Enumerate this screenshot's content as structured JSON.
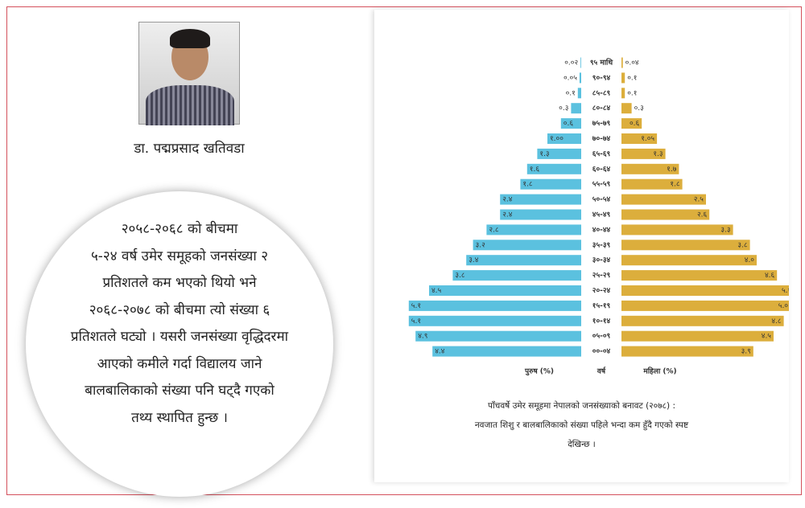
{
  "author": {
    "name": "डा. पद्मप्रसाद खतिवडा"
  },
  "quote": {
    "lines": [
      "२०५८-२०६८ को बीचमा",
      "५-२४ वर्ष उमेर समूहको जनसंख्या २",
      "प्रतिशतले कम भएको थियो भने",
      "२०६८-२०७८ को बीचमा त्यो संख्या ६",
      "प्रतिशतले घट्यो । यसरी जनसंख्या वृद्धिदरमा",
      "आएको कमीले गर्दा विद्यालय जाने",
      "बालबालिकाको संख्या पनि घट्दै गएको",
      "तथ्य स्थापित हुन्छ ।"
    ]
  },
  "chart_data": {
    "type": "pyramid",
    "categories": [
      "९५ माथि",
      "९०-९४",
      "८५-८९",
      "८०-८४",
      "७५-७९",
      "७०-७४",
      "६५-६९",
      "६०-६४",
      "५५-५९",
      "५०-५४",
      "४५-४९",
      "४०-४४",
      "३५-३९",
      "३०-३४",
      "२५-२९",
      "२०-२४",
      "१५-१९",
      "१०-१४",
      "०५-०९",
      "००-०४"
    ],
    "category_label": "वर्ष",
    "series": [
      {
        "name": "पुरुष (%)",
        "color": "#5bc1df",
        "values": [
          0.02,
          0.05,
          0.1,
          0.3,
          0.6,
          1.0,
          1.3,
          1.6,
          1.8,
          2.4,
          2.4,
          2.8,
          3.2,
          3.4,
          3.8,
          4.5,
          5.1,
          5.1,
          4.9,
          4.4
        ],
        "value_labels": [
          "०.०२",
          "०.०५",
          "०.१",
          "०.३",
          "०.६",
          "१.००",
          "१.३",
          "१.६",
          "१.८",
          "२.४",
          "२.४",
          "२.८",
          "३.२",
          "३.४",
          "३.८",
          "४.५",
          "५.१",
          "५.१",
          "४.९",
          "४.४"
        ]
      },
      {
        "name": "महिला (%)",
        "color": "#dcae3c",
        "values": [
          0.04,
          0.1,
          0.1,
          0.3,
          0.6,
          1.05,
          1.3,
          1.7,
          1.8,
          2.5,
          2.6,
          3.3,
          3.8,
          4.0,
          4.6,
          5.1,
          5.0,
          4.8,
          4.5,
          3.9
        ],
        "value_labels": [
          "०.०४",
          "०.१",
          "०.१",
          "०.३",
          "०.६",
          "१.०५",
          "१.३",
          "१.७",
          "१.८",
          "२.५",
          "२.६",
          "३.३",
          "३.८",
          "४.०",
          "४.६",
          "५.१",
          "५.०",
          "४.८",
          "४.५",
          "३.९"
        ]
      }
    ],
    "caption": [
      "पाँचवर्षे उमेर समूहमा नेपालको जनसंख्याको बनावट (२०७८) :",
      "नवजात शिशु र बालबालिकाको संख्या पहिले भन्दा कम हुँदै गएको स्पष्ट",
      "देखिन्छ ।"
    ]
  }
}
